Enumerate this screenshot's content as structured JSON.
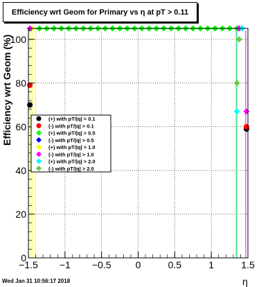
{
  "title": "Efficiency wrt Geom for Primary vs   η at pT > 0.11",
  "footer": "Wed Jan 31 10:56:17 2018",
  "chart_data": {
    "type": "scatter",
    "xlabel": "η",
    "ylabel": "Efficiency wrt Geom (%)",
    "xlim": [
      -1.5,
      1.5
    ],
    "ylim": [
      0,
      105
    ],
    "xticks": [
      "−1.5",
      "−1",
      "−0.5",
      "0",
      "0.5",
      "1",
      "1.5"
    ],
    "yticks": [
      "0",
      "20",
      "40",
      "60",
      "80",
      "100"
    ],
    "grid": true,
    "legend_position": "left-middle",
    "series": [
      {
        "name": "(+) with pT/|q| > 0.1",
        "color": "#000000",
        "points": [
          {
            "x": -1.48,
            "y": 70
          },
          {
            "x": 1.48,
            "y": 59
          }
        ]
      },
      {
        "name": "(-) with pT/|q| > 0.1",
        "color": "#ff0000",
        "points": [
          {
            "x": -1.48,
            "y": 79
          },
          {
            "x": 1.48,
            "y": 60
          }
        ]
      },
      {
        "name": "(+) with pT/|q| > 0.5",
        "color": "#00ff00",
        "points": [
          {
            "x": -1.45,
            "y": 105
          },
          {
            "x": -1.35,
            "y": 105
          },
          {
            "x": -1.25,
            "y": 105
          },
          {
            "x": -1.15,
            "y": 105
          },
          {
            "x": -1.05,
            "y": 105
          },
          {
            "x": -0.95,
            "y": 105
          },
          {
            "x": -0.85,
            "y": 105
          },
          {
            "x": -0.75,
            "y": 105
          },
          {
            "x": -0.65,
            "y": 105
          },
          {
            "x": -0.55,
            "y": 105
          },
          {
            "x": -0.45,
            "y": 105
          },
          {
            "x": -0.35,
            "y": 105
          },
          {
            "x": -0.25,
            "y": 105
          },
          {
            "x": -0.15,
            "y": 105
          },
          {
            "x": -0.05,
            "y": 105
          },
          {
            "x": 0.05,
            "y": 105
          },
          {
            "x": 0.15,
            "y": 105
          },
          {
            "x": 0.25,
            "y": 105
          },
          {
            "x": 0.35,
            "y": 105
          },
          {
            "x": 0.45,
            "y": 105
          },
          {
            "x": 0.55,
            "y": 105
          },
          {
            "x": 0.65,
            "y": 105
          },
          {
            "x": 0.75,
            "y": 105
          },
          {
            "x": 0.85,
            "y": 105
          },
          {
            "x": 0.95,
            "y": 105
          },
          {
            "x": 1.05,
            "y": 105
          },
          {
            "x": 1.15,
            "y": 105
          },
          {
            "x": 1.25,
            "y": 105
          },
          {
            "x": 1.35,
            "y": 105
          }
        ]
      },
      {
        "name": "(-) with pT/|q| > 0.5",
        "color": "#0000ff",
        "points": [
          {
            "x": 1.38,
            "y": 105
          }
        ]
      },
      {
        "name": "(+) with pT/|q| > 1.0",
        "color": "#ffff00",
        "points": [
          {
            "x": -1.45,
            "y": 105
          }
        ]
      },
      {
        "name": "(-) with pT/|q| > 1.0",
        "color": "#ff00ff",
        "points": [
          {
            "x": -1.48,
            "y": 105
          },
          {
            "x": 1.38,
            "y": 105
          },
          {
            "x": 1.48,
            "y": 67
          }
        ]
      },
      {
        "name": "(+) with pT/|q| > 2.0",
        "color": "#00ffff",
        "points": [
          {
            "x": 1.35,
            "y": 67
          },
          {
            "x": 1.42,
            "y": 105
          }
        ]
      },
      {
        "name": "(-) with pT/|q| > 2.0",
        "color": "#66cc44",
        "points": [
          {
            "x": 1.35,
            "y": 80
          },
          {
            "x": 1.38,
            "y": 100
          }
        ]
      }
    ]
  }
}
